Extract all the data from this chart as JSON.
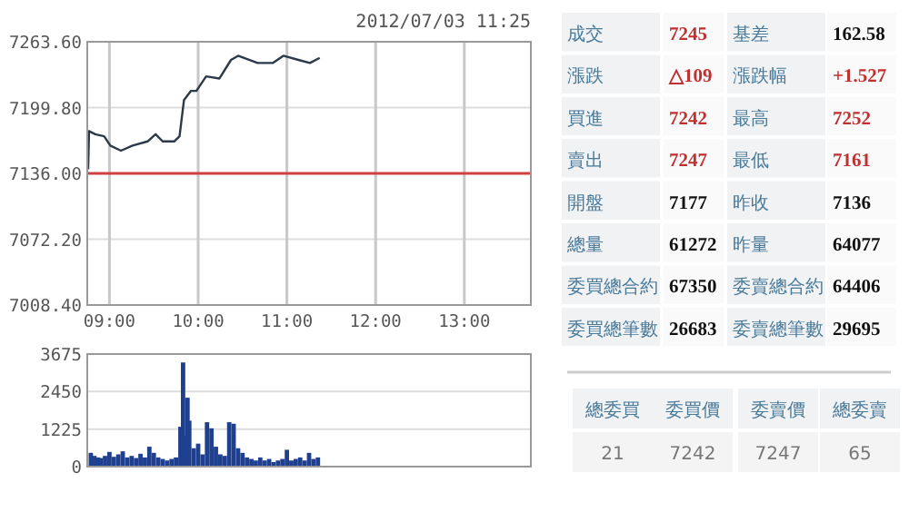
{
  "chart_data": [
    {
      "type": "line",
      "title": "2012/07/03 11:25",
      "grid": true,
      "xlim": [
        8.75,
        13.75
      ],
      "xticks": [
        {
          "value": 9,
          "label": "09:00"
        },
        {
          "value": 10,
          "label": "10:00"
        },
        {
          "value": 11,
          "label": "11:00"
        },
        {
          "value": 12,
          "label": "12:00"
        },
        {
          "value": 13,
          "label": "13:00"
        }
      ],
      "ylim": [
        7008.4,
        7263.6
      ],
      "yticks": [
        {
          "value": 7008.4,
          "label": "7008.40"
        },
        {
          "value": 7072.2,
          "label": "7072.20"
        },
        {
          "value": 7136,
          "label": "7136.00"
        },
        {
          "value": 7199.8,
          "label": "7199.80"
        },
        {
          "value": 7263.6,
          "label": "7263.60"
        }
      ],
      "ref_lines": [
        {
          "axis": "y",
          "value": 7136,
          "color": "#d04040"
        }
      ],
      "series": [
        {
          "color": "#2b3a4a",
          "x": [
            8.76,
            8.77,
            8.84,
            8.94,
            9.01,
            9.13,
            9.26,
            9.43,
            9.52,
            9.6,
            9.73,
            9.79,
            9.84,
            9.92,
            9.98,
            10.09,
            10.24,
            10.37,
            10.45,
            10.67,
            10.84,
            10.96,
            11.13,
            11.26,
            11.37
          ],
          "values": [
            7140,
            7177,
            7174,
            7172,
            7163,
            7158,
            7163,
            7167,
            7174,
            7167,
            7167,
            7172,
            7207,
            7216,
            7216,
            7230,
            7228,
            7246,
            7250,
            7243,
            7243,
            7250,
            7246,
            7243,
            7248
          ]
        }
      ]
    },
    {
      "type": "bar",
      "grid": true,
      "tick_labels": "y",
      "xlim": [
        8.75,
        13.75
      ],
      "ylim": [
        0,
        3675
      ],
      "yticks": [
        0,
        1225,
        2450,
        3675
      ],
      "x": [
        8.79,
        8.83,
        8.87,
        8.9,
        8.95,
        9,
        9.05,
        9.1,
        9.15,
        9.2,
        9.25,
        9.3,
        9.35,
        9.4,
        9.45,
        9.5,
        9.55,
        9.6,
        9.65,
        9.7,
        9.75,
        9.8,
        9.83,
        9.85,
        9.88,
        9.9,
        9.95,
        10,
        10.05,
        10.1,
        10.15,
        10.2,
        10.25,
        10.3,
        10.35,
        10.4,
        10.45,
        10.5,
        10.55,
        10.6,
        10.65,
        10.7,
        10.75,
        10.8,
        10.85,
        10.9,
        10.95,
        11,
        11.05,
        11.1,
        11.15,
        11.2,
        11.25,
        11.3,
        11.35
      ],
      "series": [
        {
          "color": "#1f3f8f",
          "values": [
            450,
            350,
            300,
            280,
            350,
            480,
            320,
            400,
            500,
            300,
            350,
            280,
            420,
            300,
            650,
            450,
            300,
            250,
            200,
            250,
            300,
            1300,
            3400,
            1000,
            2250,
            1500,
            600,
            750,
            400,
            1450,
            1250,
            650,
            400,
            350,
            1450,
            1400,
            600,
            450,
            300,
            250,
            200,
            300,
            200,
            250,
            150,
            200,
            250,
            550,
            200,
            250,
            300,
            200,
            450,
            250,
            300
          ]
        }
      ]
    },
    {
      "type": "other",
      "annotations": [
        "成交",
        "7245",
        "基差",
        "162.58",
        "漲跌",
        "△109",
        "漲跌幅",
        "+1.527",
        "買進",
        "7242",
        "最高",
        "7252",
        "賣出",
        "7247",
        "最低",
        "7161",
        "開盤",
        "7177",
        "昨收",
        "7136",
        "總量",
        "61272",
        "昨量",
        "64077",
        "委買總合約",
        "67350",
        "委賣總合約",
        "64406",
        "委買總筆數",
        "26683",
        "委賣總筆數",
        "29695",
        "總委買",
        "委買價",
        "委賣價",
        "總委賣",
        "21",
        "7242",
        "7247",
        "65"
      ],
      "colors": [
        "#4a7a9a",
        "#c03030",
        "#4a7a9a",
        "#111111",
        "#4a7a9a",
        "#c03030",
        "#4a7a9a",
        "#c03030",
        "#4a7a9a",
        "#c03030",
        "#4a7a9a",
        "#c03030",
        "#4a7a9a",
        "#c03030",
        "#4a7a9a",
        "#c03030",
        "#4a7a9a",
        "#111111",
        "#4a7a9a",
        "#111111",
        "#4a7a9a",
        "#111111",
        "#4a7a9a",
        "#111111",
        "#4a7a9a",
        "#111111",
        "#4a7a9a",
        "#111111",
        "#4a7a9a",
        "#111111",
        "#4a7a9a",
        "#111111",
        "#4a7a9a",
        "#4a7a9a",
        "#4a7a9a",
        "#4a7a9a",
        "#777777",
        "#777777",
        "#777777",
        "#777777"
      ]
    }
  ]
}
